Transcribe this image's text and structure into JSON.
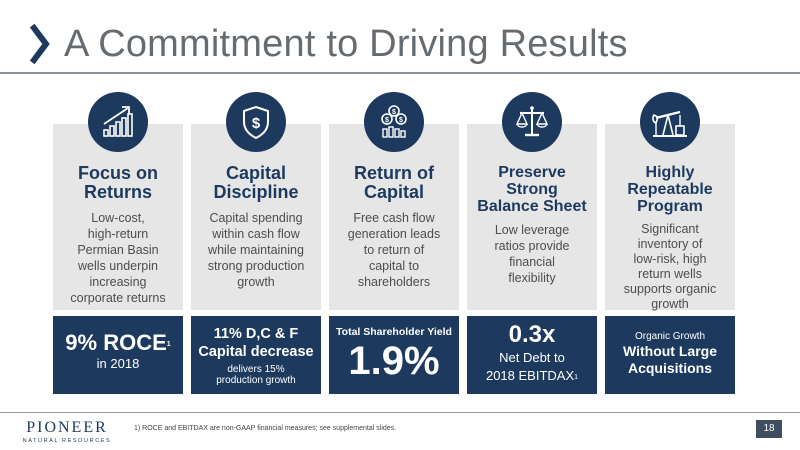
{
  "header": {
    "title": "A Commitment to Driving Results"
  },
  "columns": [
    {
      "icon": "growth-chart-icon",
      "heading": [
        "Focus on",
        "Returns"
      ],
      "description": [
        "Low-cost,",
        "high-return",
        "Permian Basin",
        "wells underpin",
        "increasing",
        "corporate returns"
      ],
      "box": {
        "main": "9% ROCE",
        "sup": "1",
        "sub": "in 2018"
      }
    },
    {
      "icon": "dollar-shield-icon",
      "heading": [
        "Capital",
        "Discipline"
      ],
      "description": [
        "Capital spending",
        "within cash flow",
        "while maintaining",
        "strong production",
        "growth"
      ],
      "box": {
        "line1": "11% D,C & F",
        "line2": "Capital decrease",
        "sub1": "delivers 15%",
        "sub2": "production growth"
      }
    },
    {
      "icon": "coins-bars-icon",
      "heading": [
        "Return of",
        "Capital"
      ],
      "description": [
        "Free cash flow",
        "generation leads",
        "to return of",
        "capital to",
        "shareholders"
      ],
      "box": {
        "label": "Total Shareholder Yield",
        "value": "1.9%"
      }
    },
    {
      "icon": "balance-scale-icon",
      "heading": [
        "Preserve",
        "Strong",
        "Balance Sheet"
      ],
      "description": [
        "Low leverage",
        "ratios provide",
        "financial",
        "flexibility"
      ],
      "box": {
        "value": "0.3x",
        "line1": "Net Debt to",
        "line2": "2018 EBITDAX",
        "sup": "1"
      }
    },
    {
      "icon": "pumpjack-icon",
      "heading": [
        "Highly",
        "Repeatable",
        "Program"
      ],
      "description": [
        "Significant",
        "inventory of",
        "low-risk, high",
        "return wells",
        "supports organic",
        "growth"
      ],
      "box": {
        "label": "Organic Growth",
        "line1": "Without Large",
        "line2": "Acquisitions"
      }
    }
  ],
  "footer": {
    "logo_name": "PIONEER",
    "logo_sub": "NATURAL RESOURCES",
    "footnote": "1) ROCE and EBITDAX are non-GAAP financial measures; see supplemental slides.",
    "page_number": "18"
  },
  "colors": {
    "navy": "#1d3a5e",
    "panel": "#e6e6e6",
    "title_gray": "#666b70"
  }
}
